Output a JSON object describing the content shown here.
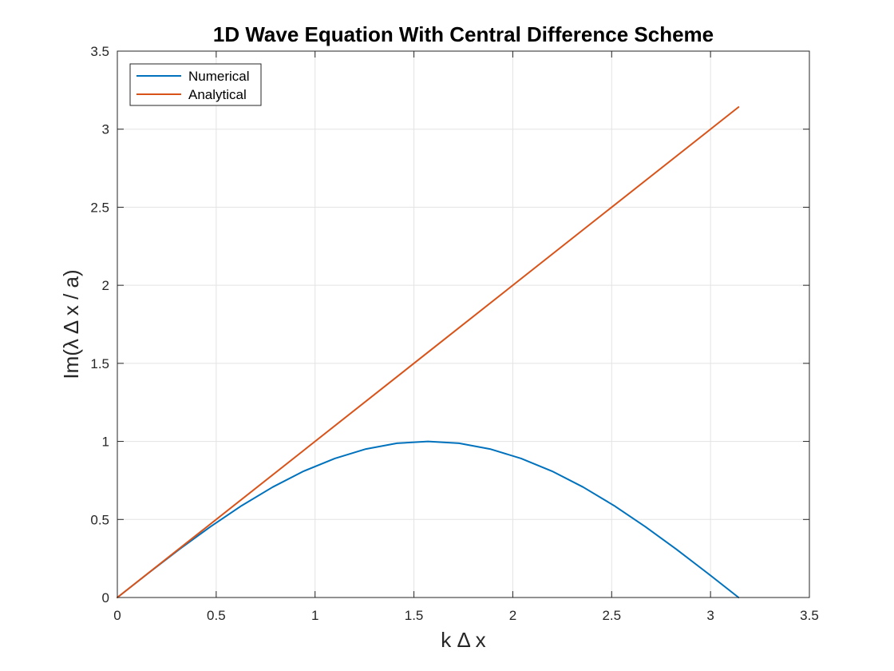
{
  "chart_data": {
    "type": "line",
    "title": "1D Wave Equation With Central Difference Scheme",
    "xlabel": "k Δ x",
    "ylabel": "Im(λ Δ x / a)",
    "xlim": [
      0,
      3.5
    ],
    "ylim": [
      0,
      3.5
    ],
    "xticks": [
      0,
      0.5,
      1,
      1.5,
      2,
      2.5,
      3,
      3.5
    ],
    "yticks": [
      0,
      0.5,
      1,
      1.5,
      2,
      2.5,
      3,
      3.5
    ],
    "xtick_labels": [
      "0",
      "0.5",
      "1",
      "1.5",
      "2",
      "2.5",
      "3",
      "3.5"
    ],
    "ytick_labels": [
      "0",
      "0.5",
      "1",
      "1.5",
      "2",
      "2.5",
      "3",
      "3.5"
    ],
    "grid": true,
    "legend_position": "top-left",
    "series": [
      {
        "name": "Numerical",
        "color": "#0072BD",
        "x": [
          0,
          0.157,
          0.314,
          0.471,
          0.628,
          0.785,
          0.942,
          1.1,
          1.257,
          1.414,
          1.571,
          1.728,
          1.885,
          2.042,
          2.199,
          2.356,
          2.513,
          2.67,
          2.827,
          2.985,
          3.142
        ],
        "y": [
          0,
          0.156,
          0.309,
          0.454,
          0.588,
          0.707,
          0.809,
          0.891,
          0.951,
          0.988,
          1.0,
          0.988,
          0.951,
          0.891,
          0.809,
          0.707,
          0.588,
          0.454,
          0.309,
          0.156,
          0.0
        ]
      },
      {
        "name": "Analytical",
        "color": "#D95319",
        "x": [
          0,
          3.142
        ],
        "y": [
          0,
          3.142
        ]
      }
    ]
  }
}
